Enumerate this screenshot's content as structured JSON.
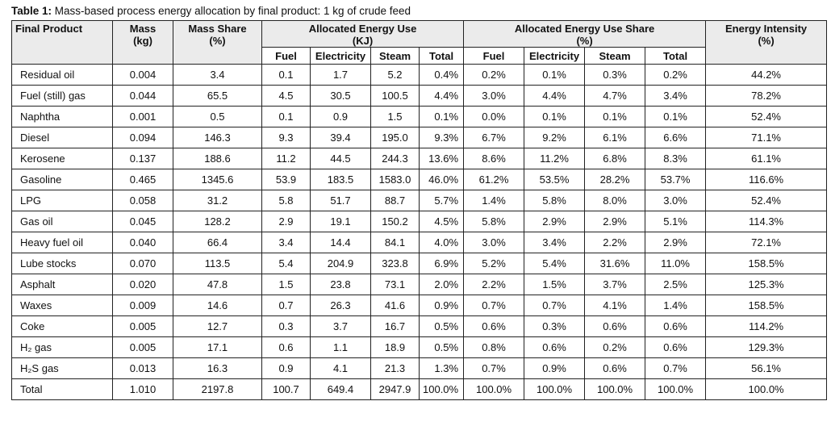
{
  "caption": {
    "label": "Table 1:",
    "text": "Mass-based process energy allocation by final product: 1 kg of crude feed"
  },
  "headers": {
    "product": "Final Product",
    "mass": "Mass",
    "mass_unit": "(kg)",
    "mass_share": "Mass Share",
    "mass_share_unit": "(%)",
    "energy_use": "Allocated Energy Use",
    "energy_use_unit": "(KJ)",
    "energy_share": "Allocated Energy Use Share",
    "energy_share_unit": "(%)",
    "intensity": "Energy Intensity",
    "intensity_unit": "(%)",
    "fuel": "Fuel",
    "electricity": "Electricity",
    "steam": "Steam",
    "total": "Total"
  },
  "rows": [
    [
      "Residual oil",
      "0.004",
      "3.4",
      "0.1",
      "1.7",
      "5.2",
      "0.4%",
      "0.2%",
      "0.1%",
      "0.3%",
      "0.2%",
      "44.2%"
    ],
    [
      "Fuel (still) gas",
      "0.044",
      "65.5",
      "4.5",
      "30.5",
      "100.5",
      "4.4%",
      "3.0%",
      "4.4%",
      "4.7%",
      "3.4%",
      "78.2%"
    ],
    [
      "Naphtha",
      "0.001",
      "0.5",
      "0.1",
      "0.9",
      "1.5",
      "0.1%",
      "0.0%",
      "0.1%",
      "0.1%",
      "0.1%",
      "52.4%"
    ],
    [
      "Diesel",
      "0.094",
      "146.3",
      "9.3",
      "39.4",
      "195.0",
      "9.3%",
      "6.7%",
      "9.2%",
      "6.1%",
      "6.6%",
      "71.1%"
    ],
    [
      "Kerosene",
      "0.137",
      "188.6",
      "11.2",
      "44.5",
      "244.3",
      "13.6%",
      "8.6%",
      "11.2%",
      "6.8%",
      "8.3%",
      "61.1%"
    ],
    [
      "Gasoline",
      "0.465",
      "1345.6",
      "53.9",
      "183.5",
      "1583.0",
      "46.0%",
      "61.2%",
      "53.5%",
      "28.2%",
      "53.7%",
      "116.6%"
    ],
    [
      "LPG",
      "0.058",
      "31.2",
      "5.8",
      "51.7",
      "88.7",
      "5.7%",
      "1.4%",
      "5.8%",
      "8.0%",
      "3.0%",
      "52.4%"
    ],
    [
      "Gas oil",
      "0.045",
      "128.2",
      "2.9",
      "19.1",
      "150.2",
      "4.5%",
      "5.8%",
      "2.9%",
      "2.9%",
      "5.1%",
      "114.3%"
    ],
    [
      "Heavy fuel oil",
      "0.040",
      "66.4",
      "3.4",
      "14.4",
      "84.1",
      "4.0%",
      "3.0%",
      "3.4%",
      "2.2%",
      "2.9%",
      "72.1%"
    ],
    [
      "Lube stocks",
      "0.070",
      "113.5",
      "5.4",
      "204.9",
      "323.8",
      "6.9%",
      "5.2%",
      "5.4%",
      "31.6%",
      "11.0%",
      "158.5%"
    ],
    [
      "Asphalt",
      "0.020",
      "47.8",
      "1.5",
      "23.8",
      "73.1",
      "2.0%",
      "2.2%",
      "1.5%",
      "3.7%",
      "2.5%",
      "125.3%"
    ],
    [
      "Waxes",
      "0.009",
      "14.6",
      "0.7",
      "26.3",
      "41.6",
      "0.9%",
      "0.7%",
      "0.7%",
      "4.1%",
      "1.4%",
      "158.5%"
    ],
    [
      "Coke",
      "0.005",
      "12.7",
      "0.3",
      "3.7",
      "16.7",
      "0.5%",
      "0.6%",
      "0.3%",
      "0.6%",
      "0.6%",
      "114.2%"
    ],
    [
      "H₂ gas",
      "0.005",
      "17.1",
      "0.6",
      "1.1",
      "18.9",
      "0.5%",
      "0.8%",
      "0.6%",
      "0.2%",
      "0.6%",
      "129.3%"
    ],
    [
      "H₂S gas",
      "0.013",
      "16.3",
      "0.9",
      "4.1",
      "21.3",
      "1.3%",
      "0.7%",
      "0.9%",
      "0.6%",
      "0.7%",
      "56.1%"
    ],
    [
      "Total",
      "1.010",
      "2197.8",
      "100.7",
      "649.4",
      "2947.9",
      "100.0%",
      "100.0%",
      "100.0%",
      "100.0%",
      "100.0%",
      "100.0%"
    ]
  ]
}
